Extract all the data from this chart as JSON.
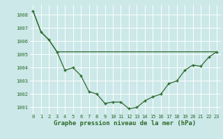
{
  "c1_y": [
    1008.3,
    1006.7,
    1006.1,
    1005.2,
    1003.8,
    1004.0,
    1003.4,
    1002.2,
    1002.0,
    1001.3,
    1001.4,
    1001.4,
    1000.9,
    1001.0,
    1001.5,
    1001.8,
    1002.0,
    1002.8,
    1003.0,
    1003.8,
    1004.2,
    1004.1,
    1004.8,
    1005.2
  ],
  "c2_y": [
    1008.3,
    1006.7,
    1006.1,
    1005.2,
    1005.2,
    1005.2,
    1005.2,
    1005.2,
    1005.2,
    1005.2,
    1005.2,
    1005.2,
    1005.2,
    1005.2,
    1005.2,
    1005.2,
    1005.2,
    1005.2,
    1005.2,
    1005.2,
    1005.2,
    1005.2,
    1005.2,
    1005.2
  ],
  "line_color": "#2d6a2d",
  "bg_color": "#cce8e8",
  "grid_color": "#ffffff",
  "xlabel": "Graphe pression niveau de la mer (hPa)",
  "ylim_min": 1000.5,
  "ylim_max": 1008.8,
  "yticks": [
    1001,
    1002,
    1003,
    1004,
    1005,
    1006,
    1007,
    1008
  ],
  "xticks": [
    0,
    1,
    2,
    3,
    4,
    5,
    6,
    7,
    8,
    9,
    10,
    11,
    12,
    13,
    14,
    15,
    16,
    17,
    18,
    19,
    20,
    21,
    22,
    23
  ],
  "tick_fontsize": 5.0,
  "ylabel_fontsize": 5.0,
  "xlabel_fontsize": 6.5
}
